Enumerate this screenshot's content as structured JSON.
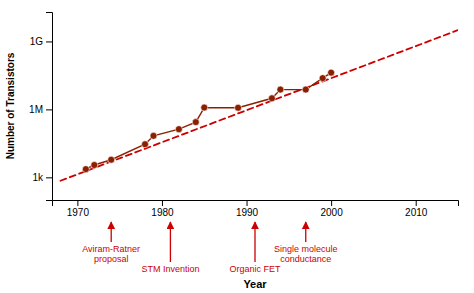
{
  "chart_data": {
    "type": "line",
    "log": "y",
    "xlabel": "Year",
    "ylabel": "Number of Transistors",
    "xlim": [
      1967,
      2015
    ],
    "xticks": [
      1970,
      1980,
      1990,
      2000,
      2010
    ],
    "ylim": [
      100,
      19952623149.688797
    ],
    "yticks": [
      {
        "value": 1000,
        "label": "1k"
      },
      {
        "value": 1000000,
        "label": "1M"
      },
      {
        "value": 1000000000,
        "label": "1G"
      }
    ],
    "series": [
      {
        "x": [
          1968,
          2015
        ],
        "values": [
          707.945784384138,
          3162277660.1683793
        ],
        "color": "#CC0000",
        "line_style": "dashed",
        "marker": "none"
      },
      {
        "x": [
          1971,
          1972,
          1974,
          1978,
          1979,
          1982,
          1984,
          1985,
          1989,
          1993,
          1994,
          1997,
          1999,
          2000
        ],
        "values": [
          2300,
          3500,
          6000,
          29000,
          68000,
          134000,
          275000,
          1200000,
          1180000,
          3100000,
          7500000,
          7500000,
          24000000,
          42000000
        ],
        "color": "#8B2000",
        "line_style": "solid",
        "marker": "circle"
      }
    ],
    "annotations": [
      {
        "x": 1974,
        "text": "Aviram-Ratner\nproposal",
        "color": "#CC0000"
      },
      {
        "x": 1981,
        "text": "STM Invention",
        "color": "#CC0000"
      },
      {
        "x": 1991,
        "text": "Organic FET",
        "color": "#CC0000"
      },
      {
        "x": 1997,
        "text": "Single molecule\nconductance",
        "color": "#CC0000"
      }
    ]
  }
}
